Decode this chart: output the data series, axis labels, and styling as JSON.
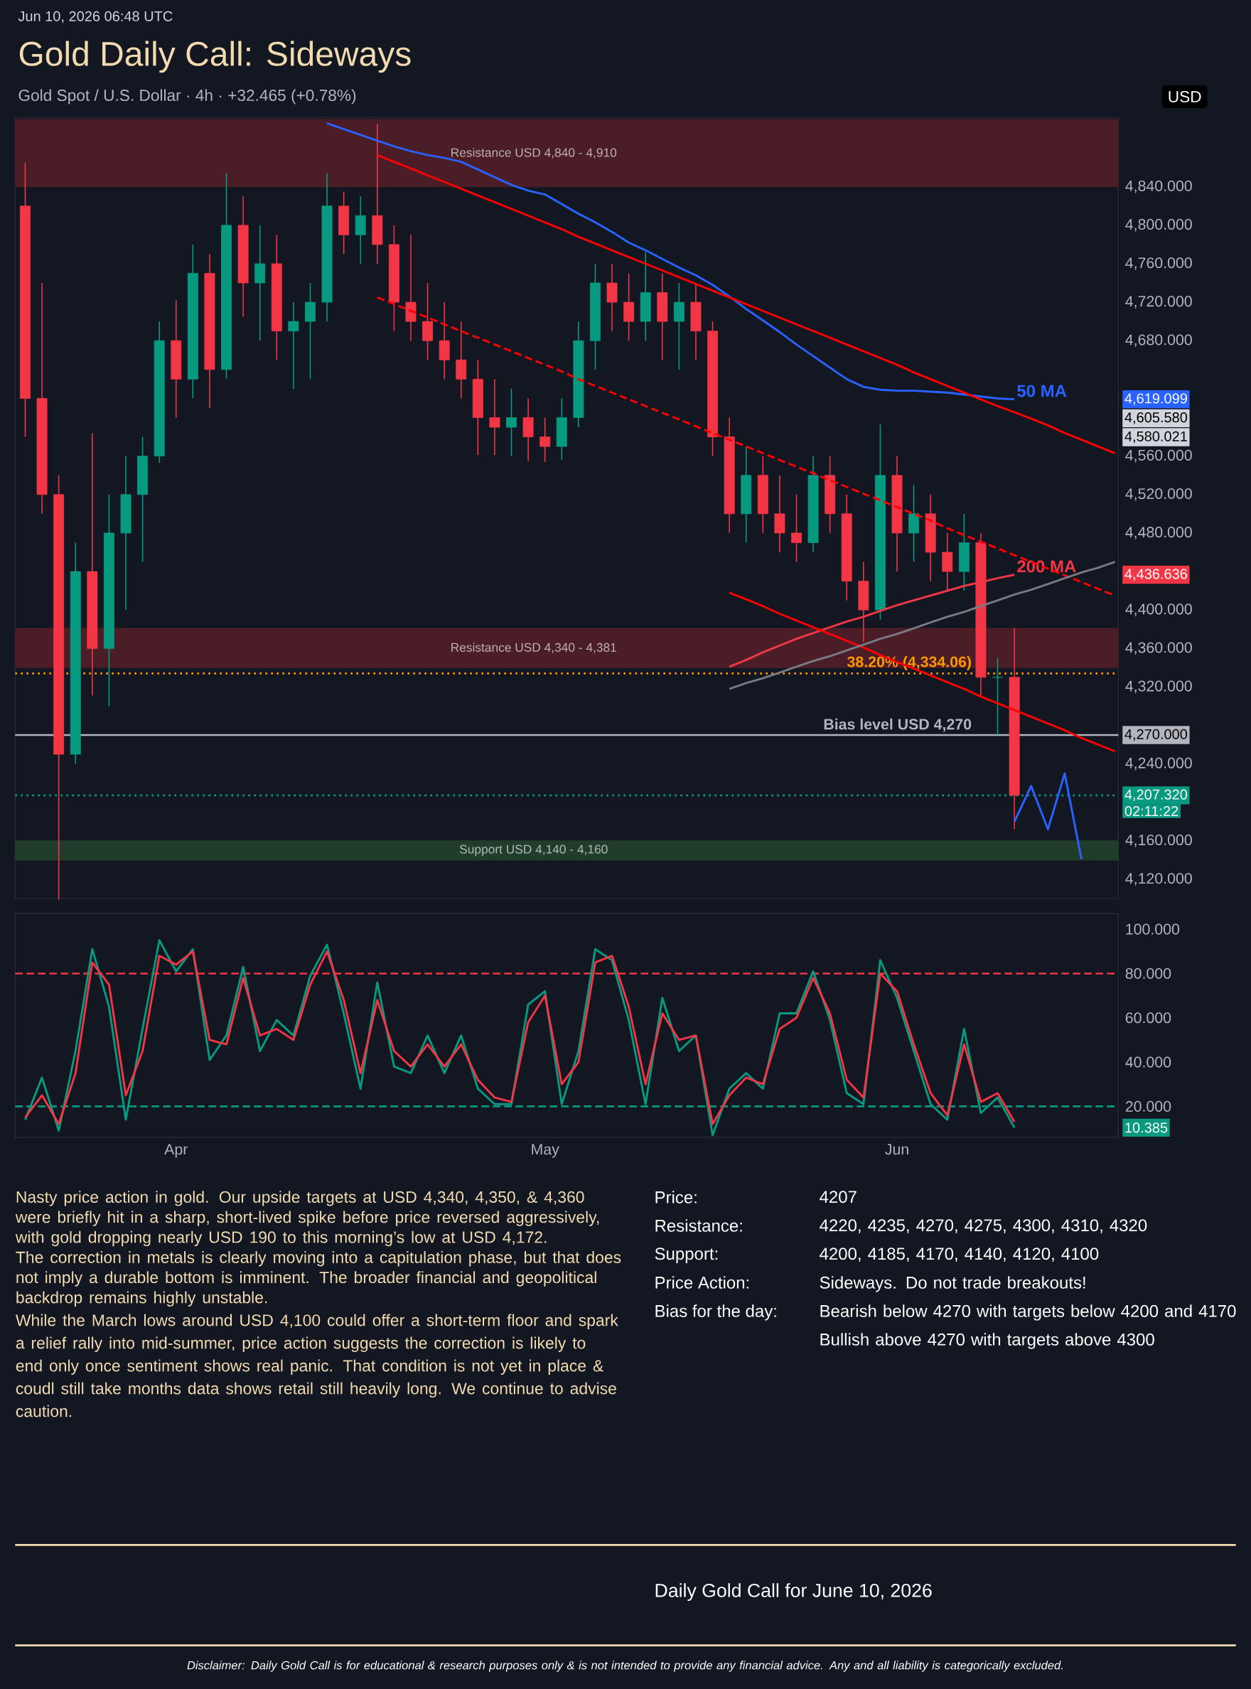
{
  "chart_data": [
    {
      "type": "candlestick",
      "title": "Gold Daily Call: Sideways",
      "subtitle": "Gold Spot / U.S. Dollar · 4h · +32.465 (+0.78%)",
      "ylabel": "USD",
      "annotations": [
        "Jun 10, 2026 06:48 UTC",
        "4,619.099",
        "4,605.580",
        "4,580.021",
        "4,436.636",
        "4,270.000",
        "4,207.320",
        "02:11:22"
      ],
      "categories": [
        null,
        null,
        null,
        null,
        null,
        null,
        null,
        null,
        null,
        null,
        null,
        null,
        null,
        null,
        null,
        null,
        null,
        null,
        null,
        null,
        null,
        null,
        null,
        null,
        null,
        null,
        null,
        null,
        null,
        null,
        null,
        null,
        null,
        null,
        null,
        null,
        null,
        null,
        null,
        null,
        null,
        null,
        null,
        null,
        null,
        null,
        null,
        null,
        null,
        null,
        null,
        null,
        null,
        null,
        null,
        null,
        null,
        null,
        null,
        null,
        null,
        null,
        null,
        null,
        null,
        null
      ],
      "ohlc": [
        [
          4820,
          4865,
          4580,
          4620
        ],
        [
          4620,
          4740,
          4500,
          4520
        ],
        [
          4520,
          4540,
          4099,
          4250
        ],
        [
          4250,
          4470,
          4240,
          4440
        ],
        [
          4440,
          4584,
          4311,
          4360
        ],
        [
          4360,
          4520,
          4300,
          4480
        ],
        [
          4480,
          4560,
          4400,
          4520
        ],
        [
          4520,
          4580,
          4450,
          4560
        ],
        [
          4560,
          4700,
          4553,
          4680
        ],
        [
          4680,
          4722,
          4600,
          4640
        ],
        [
          4640,
          4780,
          4620,
          4750
        ],
        [
          4750,
          4770,
          4610,
          4650
        ],
        [
          4650,
          4854,
          4640,
          4800
        ],
        [
          4800,
          4830,
          4705,
          4740
        ],
        [
          4740,
          4800,
          4680,
          4760
        ],
        [
          4760,
          4790,
          4660,
          4690
        ],
        [
          4690,
          4720,
          4630,
          4700
        ],
        [
          4700,
          4740,
          4640,
          4720
        ],
        [
          4720,
          4854,
          4700,
          4820
        ],
        [
          4820,
          4835,
          4770,
          4790
        ],
        [
          4790,
          4830,
          4760,
          4810
        ],
        [
          4810,
          4905,
          4760,
          4780
        ],
        [
          4780,
          4800,
          4690,
          4720
        ],
        [
          4720,
          4790,
          4680,
          4700
        ],
        [
          4700,
          4740,
          4660,
          4680
        ],
        [
          4680,
          4720,
          4640,
          4660
        ],
        [
          4660,
          4700,
          4620,
          4640
        ],
        [
          4640,
          4660,
          4561,
          4600
        ],
        [
          4600,
          4640,
          4561,
          4590
        ],
        [
          4590,
          4630,
          4560,
          4600
        ],
        [
          4600,
          4620,
          4555,
          4580
        ],
        [
          4580,
          4600,
          4554,
          4570
        ],
        [
          4570,
          4620,
          4556,
          4600
        ],
        [
          4600,
          4700,
          4590,
          4680
        ],
        [
          4680,
          4760,
          4650,
          4740
        ],
        [
          4740,
          4760,
          4690,
          4720
        ],
        [
          4720,
          4750,
          4680,
          4700
        ],
        [
          4700,
          4772,
          4680,
          4730
        ],
        [
          4730,
          4750,
          4660,
          4700
        ],
        [
          4700,
          4740,
          4650,
          4720
        ],
        [
          4720,
          4740,
          4660,
          4690
        ],
        [
          4690,
          4700,
          4560,
          4580
        ],
        [
          4580,
          4600,
          4480,
          4500
        ],
        [
          4500,
          4570,
          4470,
          4540
        ],
        [
          4540,
          4560,
          4480,
          4500
        ],
        [
          4500,
          4540,
          4460,
          4480
        ],
        [
          4480,
          4520,
          4450,
          4470
        ],
        [
          4470,
          4560,
          4460,
          4540
        ],
        [
          4540,
          4560,
          4480,
          4500
        ],
        [
          4500,
          4520,
          4410,
          4430
        ],
        [
          4430,
          4450,
          4367,
          4400
        ],
        [
          4400,
          4593,
          4390,
          4540
        ],
        [
          4540,
          4560,
          4440,
          4480
        ],
        [
          4480,
          4530,
          4450,
          4500
        ],
        [
          4500,
          4520,
          4430,
          4460
        ],
        [
          4460,
          4480,
          4420,
          4440
        ],
        [
          4440,
          4500,
          4420,
          4470
        ],
        [
          4470,
          4480,
          4310,
          4330
        ],
        [
          4330,
          4350,
          4270,
          4330
        ],
        [
          4330,
          4381,
          4172,
          4207.32
        ],
        null,
        null,
        null,
        null,
        null,
        null
      ],
      "ylim": [
        4100,
        4912
      ],
      "yticks": [
        {
          "value": 4120,
          "label": "4,120.000"
        },
        {
          "value": 4160,
          "label": "4,160.000"
        },
        {
          "value": 4240,
          "label": "4,240.000"
        },
        {
          "value": 4320,
          "label": "4,320.000"
        },
        {
          "value": 4360,
          "label": "4,360.000"
        },
        {
          "value": 4400,
          "label": "4,400.000"
        },
        {
          "value": 4480,
          "label": "4,480.000"
        },
        {
          "value": 4520,
          "label": "4,520.000"
        },
        {
          "value": 4560,
          "label": "4,560.000"
        },
        {
          "value": 4680,
          "label": "4,680.000"
        },
        {
          "value": 4720,
          "label": "4,720.000"
        },
        {
          "value": 4760,
          "label": "4,760.000"
        },
        {
          "value": 4800,
          "label": "4,800.000"
        },
        {
          "value": 4840,
          "label": "4,840.000"
        }
      ],
      "series": [
        {
          "type": "line",
          "name": "50 MA",
          "color": "#2962ff",
          "values": [
            null,
            null,
            null,
            null,
            null,
            null,
            null,
            null,
            null,
            null,
            null,
            null,
            null,
            null,
            null,
            null,
            null,
            null,
            4906,
            4900,
            4894,
            4888,
            4882,
            4877,
            4873,
            4870,
            4866,
            4858,
            4850,
            4842,
            4836,
            4832,
            4822,
            4812,
            4803,
            4793,
            4782,
            4774,
            4765,
            4756,
            4748,
            4738,
            4726,
            4713,
            4701,
            4689,
            4676,
            4664,
            4652,
            4640,
            4632,
            4629,
            4628,
            4628,
            4627,
            4626,
            4624,
            4622,
            4620,
            4619.099,
            null,
            null,
            null,
            null,
            null,
            null
          ]
        },
        {
          "type": "line",
          "name": "200 MA",
          "color": "#f23645",
          "values": [
            null,
            null,
            null,
            null,
            null,
            null,
            null,
            null,
            null,
            null,
            null,
            null,
            null,
            null,
            null,
            null,
            null,
            null,
            null,
            null,
            null,
            null,
            null,
            null,
            null,
            null,
            null,
            null,
            null,
            null,
            null,
            null,
            null,
            null,
            null,
            null,
            null,
            null,
            null,
            null,
            null,
            null,
            4341,
            4348,
            4356,
            4363,
            4370,
            4376,
            4382,
            4388,
            4393,
            4399,
            4405,
            4410,
            4415,
            4420,
            4425,
            4429,
            4433,
            4436.636,
            null,
            null,
            null,
            null,
            null,
            null
          ]
        },
        {
          "type": "line",
          "color": "#ff0000",
          "values": [
            null,
            null,
            null,
            null,
            null,
            null,
            null,
            null,
            null,
            null,
            null,
            null,
            null,
            null,
            null,
            null,
            null,
            null,
            null,
            null,
            null,
            4873,
            4866,
            4859,
            4852,
            4845,
            4838,
            4831,
            4824,
            4817,
            4810,
            4803,
            4796,
            4788,
            4781,
            4774,
            4767,
            4760,
            4753,
            4746,
            4739,
            4732,
            4725,
            4718,
            4711,
            4704,
            4697,
            4690,
            4683,
            4676,
            4669,
            4662,
            4655,
            4647,
            4640,
            4633,
            4626,
            4619,
            4612,
            4605.58,
            4599,
            4592,
            4584,
            4577,
            4570,
            4563
          ]
        },
        {
          "type": "line",
          "color": "#ff0000",
          "values": [
            null,
            null,
            null,
            null,
            null,
            null,
            null,
            null,
            null,
            null,
            null,
            null,
            null,
            null,
            null,
            null,
            null,
            null,
            null,
            null,
            null,
            null,
            null,
            null,
            null,
            null,
            null,
            null,
            null,
            null,
            null,
            null,
            null,
            null,
            null,
            null,
            null,
            null,
            null,
            null,
            null,
            null,
            4418,
            4411,
            4404,
            4396,
            4389,
            4382,
            4375,
            4368,
            4361,
            4353,
            4346,
            4339,
            4332,
            4325,
            4318,
            4310,
            4303,
            4296,
            4289,
            4282,
            4275,
            4267,
            4260,
            4253
          ]
        },
        {
          "type": "line",
          "color": "#ff0000",
          "line_style": "dashed",
          "values": [
            null,
            null,
            null,
            null,
            null,
            null,
            null,
            null,
            null,
            null,
            null,
            null,
            null,
            null,
            null,
            null,
            null,
            null,
            null,
            null,
            null,
            4725,
            4718,
            4711,
            4704,
            4697,
            4690,
            4683,
            4676,
            4669,
            4662,
            4655,
            4648,
            4640,
            4633,
            4626,
            4619,
            4612,
            4605,
            4598,
            4591,
            4584,
            4577,
            4570,
            4563,
            4556,
            4549,
            4542,
            4535,
            4528,
            4521,
            4514,
            4507,
            4500,
            4493,
            4485,
            4478,
            4471,
            4464,
            4457,
            4450,
            4443,
            4436,
            4429,
            4422,
            4415
          ]
        },
        {
          "type": "line",
          "color": "#787b86",
          "values": [
            null,
            null,
            null,
            null,
            null,
            null,
            null,
            null,
            null,
            null,
            null,
            null,
            null,
            null,
            null,
            null,
            null,
            null,
            null,
            null,
            null,
            null,
            null,
            null,
            null,
            null,
            null,
            null,
            null,
            null,
            null,
            null,
            null,
            null,
            null,
            null,
            null,
            null,
            null,
            null,
            null,
            null,
            4318,
            4324,
            4329,
            4335,
            4341,
            4347,
            4352,
            4358,
            4364,
            4370,
            4375,
            4381,
            4387,
            4393,
            4398,
            4404,
            4410,
            4416,
            4421,
            4427,
            4433,
            4439,
            4444,
            4450
          ]
        },
        {
          "type": "line",
          "color": "#2962ff",
          "values": [
            null,
            null,
            null,
            null,
            null,
            null,
            null,
            null,
            null,
            null,
            null,
            null,
            null,
            null,
            null,
            null,
            null,
            null,
            null,
            null,
            null,
            null,
            null,
            null,
            null,
            null,
            null,
            null,
            null,
            null,
            null,
            null,
            null,
            null,
            null,
            null,
            null,
            null,
            null,
            null,
            null,
            null,
            null,
            null,
            null,
            null,
            null,
            null,
            null,
            null,
            null,
            null,
            null,
            null,
            null,
            null,
            null,
            null,
            null,
            4180,
            4217,
            4172,
            4230,
            4141,
            null,
            null
          ]
        }
      ],
      "bands": [
        {
          "axis": "y",
          "from": 4840,
          "to": 4910,
          "label": "Resistance USD 4,840 - 4,910",
          "color": "#4a1d27"
        },
        {
          "axis": "y",
          "from": 4340,
          "to": 4381,
          "label": "Resistance USD 4,340 - 4,381",
          "color": "#4a1d27"
        },
        {
          "axis": "y",
          "from": 4140,
          "to": 4160,
          "label": "Support USD 4,140 - 4,160",
          "color": "#1f3d2a"
        }
      ],
      "ref_lines": [
        {
          "axis": "y",
          "value": 4270,
          "label": "Bias level USD 4,270",
          "color": "#b2b5be",
          "line_style": "solid"
        },
        {
          "axis": "y",
          "value": 4334.06,
          "label": "38.20% (4,334.06)",
          "color": "#ff9800",
          "line_style": "dotted"
        },
        {
          "axis": "y",
          "value": 4207.32,
          "color": "#089981",
          "line_style": "dotted"
        }
      ]
    },
    {
      "type": "line",
      "categories": [
        null,
        null,
        null,
        null,
        null,
        null,
        null,
        null,
        null,
        "Apr",
        null,
        null,
        null,
        null,
        null,
        null,
        null,
        null,
        null,
        null,
        null,
        null,
        null,
        null,
        null,
        null,
        null,
        null,
        null,
        null,
        null,
        "May",
        null,
        null,
        null,
        null,
        null,
        null,
        null,
        null,
        null,
        null,
        null,
        null,
        null,
        null,
        null,
        null,
        null,
        null,
        null,
        null,
        "Jun",
        null,
        null,
        null,
        null,
        null,
        null,
        null,
        null,
        null,
        null,
        null,
        null,
        null
      ],
      "ylim": [
        6,
        107
      ],
      "yticks": [
        {
          "value": 20,
          "label": "20.000"
        },
        {
          "value": 40,
          "label": "40.000"
        },
        {
          "value": 60,
          "label": "60.000"
        },
        {
          "value": 80,
          "label": "80.000"
        },
        {
          "value": 100,
          "label": "100.000"
        }
      ],
      "series": [
        {
          "color": "#089981",
          "values": [
            14,
            33,
            9,
            45,
            91,
            65,
            14,
            55,
            95,
            81,
            91,
            41,
            52,
            83,
            45,
            59,
            52,
            79,
            93,
            62,
            28,
            76,
            38,
            35,
            52,
            35,
            52,
            28,
            21,
            21,
            66,
            72,
            21,
            45,
            91,
            86,
            59,
            21,
            69,
            45,
            52,
            7,
            28,
            35,
            28,
            62,
            62,
            81,
            59,
            26,
            21,
            86,
            69,
            45,
            21,
            14,
            55,
            17,
            24,
            10.385,
            null,
            null,
            null,
            null,
            null,
            null
          ]
        },
        {
          "color": "#f23645",
          "values": [
            15,
            25,
            12,
            35,
            85,
            75,
            25,
            45,
            88,
            84,
            90,
            50,
            48,
            78,
            52,
            55,
            50,
            75,
            90,
            68,
            35,
            68,
            45,
            38,
            48,
            38,
            48,
            32,
            24,
            22,
            58,
            70,
            30,
            40,
            85,
            88,
            65,
            30,
            62,
            50,
            52,
            12,
            25,
            33,
            30,
            55,
            60,
            78,
            62,
            32,
            24,
            80,
            72,
            48,
            26,
            16,
            48,
            22,
            26,
            13,
            null,
            null,
            null,
            null,
            null,
            null
          ]
        }
      ],
      "ref_lines": [
        {
          "axis": "y",
          "value": 80,
          "color": "#f23645",
          "line_style": "dashed"
        },
        {
          "axis": "y",
          "value": 20,
          "color": "#089981",
          "line_style": "dashed"
        }
      ],
      "annotations": [
        "10.385"
      ]
    },
    {
      "type": "other",
      "annotations": [
        "Nasty price action in gold. Our upside targets at USD 4,340, 4,350, & 4,360 were briefly hit in a sharp, short-lived spike before price reversed aggressively, with gold dropping nearly USD 190 to this morning’s low at USD 4,172.",
        "The correction in metals is clearly moving into a capitulation phase, but that does not imply a durable bottom is imminent. The broader financial and geopolitical backdrop remains highly unstable.",
        "While the March lows around USD 4,100 could offer a short-term floor and spark a relief rally into mid-summer, price action suggests the correction is likely to end only once sentiment shows real panic. That condition is not yet in place & coudl still take months data shows retail still heavily long. We continue to advise caution.",
        "Price:",
        "4207",
        "Resistance:",
        "4220, 4235, 4270, 4275, 4300, 4310, 4320",
        "Support:",
        "4200, 4185, 4170, 4140, 4120, 4100",
        "Price Action:",
        "Sideways. Do not trade breakouts!",
        "Bias for the day:",
        "Bearish below 4270 with targets below 4200 and 4170",
        "Bullish above 4270 with targets above 4300",
        "Daily Gold Call for June 10, 2026",
        "Disclaimer: Daily Gold Call is for educational & research purposes only & is not intended to provide any financial advice. Any and all liability is categorically excluded."
      ]
    }
  ]
}
